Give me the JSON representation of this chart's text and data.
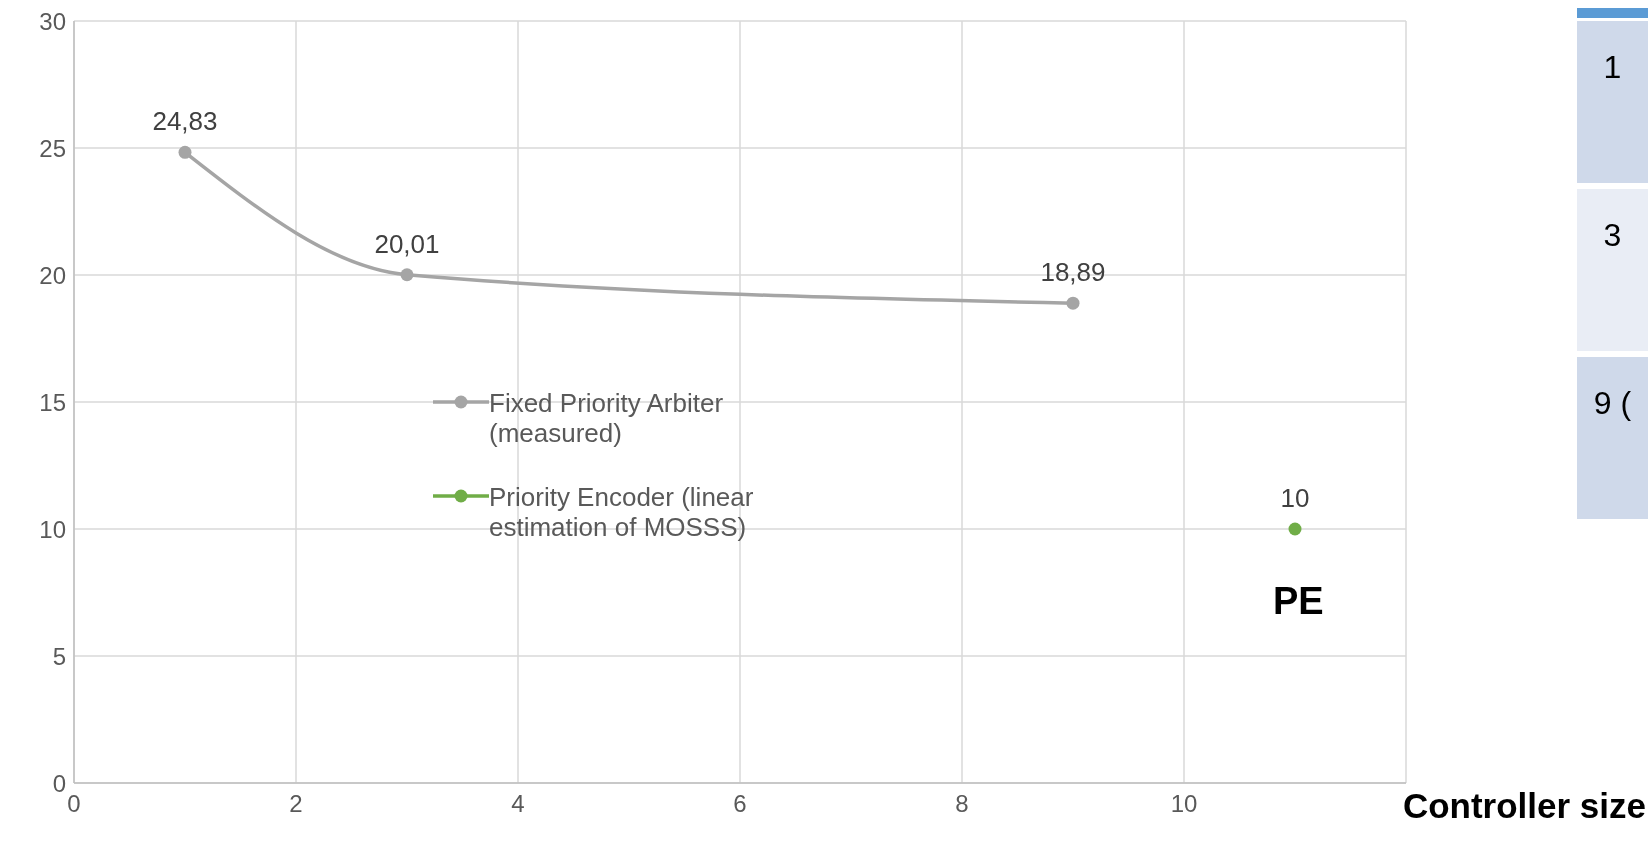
{
  "chart_data": {
    "type": "line",
    "xlabel": "Controller size",
    "xlim": [
      0,
      12
    ],
    "xticks": [
      0,
      2,
      4,
      6,
      8,
      10
    ],
    "ylim": [
      0,
      30
    ],
    "yticks": [
      0,
      5,
      10,
      15,
      20,
      25,
      30
    ],
    "grid": true,
    "legend": "center",
    "marker": "circle",
    "line_style": "solid",
    "series": [
      {
        "name": "Fixed Priority Arbiter (measured)",
        "color": "#a5a5a5",
        "x": [
          1,
          3,
          9
        ],
        "values": [
          24.83,
          20.01,
          18.89
        ],
        "value_labels": [
          "24,83",
          "20,01",
          "18,89"
        ]
      },
      {
        "name": "Priority Encoder (linear estimation of MOSSS)",
        "color": "#70ad47",
        "x": [
          11
        ],
        "values": [
          10
        ],
        "value_labels": [
          "10"
        ]
      }
    ],
    "annotations": [
      "PE",
      "1",
      "3",
      "9 ("
    ]
  }
}
